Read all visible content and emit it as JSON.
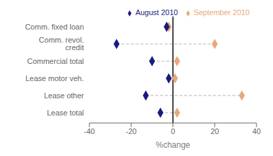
{
  "chart_data": {
    "type": "dumbbell",
    "categories": [
      "Comm. fixed loan",
      "Comm. revol. credit",
      "Commercial total",
      "Lease motor veh.",
      "Lease other",
      "Lease total"
    ],
    "series": [
      {
        "name": "August 2010",
        "color": "#1a1a7e",
        "values": [
          -3,
          -27,
          -10,
          -2,
          -13,
          -6
        ],
        "marker": "diamond"
      },
      {
        "name": "September 2010",
        "color": "#e8a87c",
        "values": [
          -2,
          20,
          2,
          1,
          33,
          2
        ],
        "marker": "diamond"
      }
    ],
    "xlim": [
      -40,
      40
    ],
    "xticks": [
      -40,
      -20,
      0,
      20,
      40
    ],
    "xlabel": "%change",
    "line_style": "dashed",
    "legend": "upper right",
    "grid": false
  }
}
